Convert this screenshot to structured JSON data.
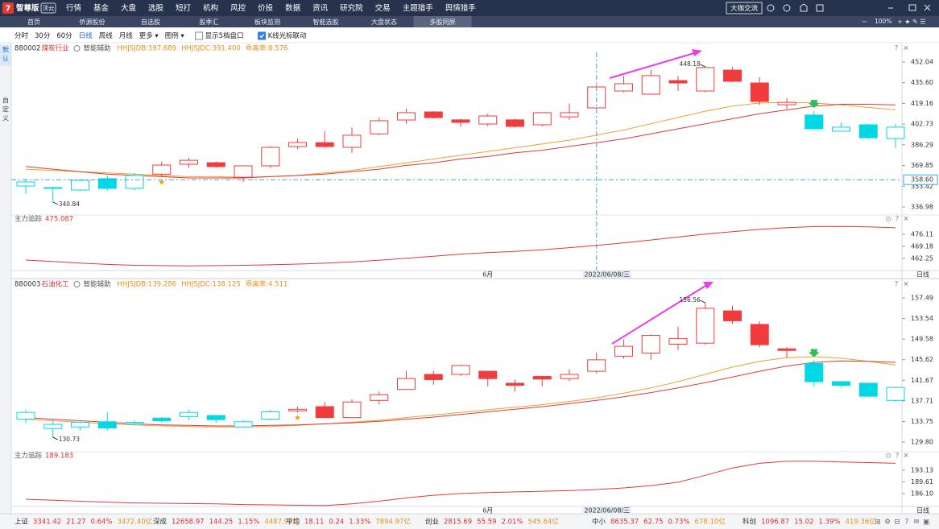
{
  "app": {
    "logo": "智尊版",
    "badge": "顶云",
    "menu": [
      "行情",
      "基金",
      "大盘",
      "选股",
      "短打",
      "机构",
      "风控",
      "价投",
      "数据",
      "资讯",
      "研究院",
      "交易",
      "主题猎手",
      "舆情猎手"
    ],
    "chat": "大咖交流",
    "zoom": "100%"
  },
  "tabs": {
    "items": [
      "首页",
      "侨源股份",
      "自选股",
      "股季汇",
      "板块监测",
      "智能选股",
      "大盘状态",
      "多股同屏"
    ],
    "active": 7
  },
  "toolbar": {
    "items": [
      "分时",
      "30分",
      "60分",
      "日线",
      "周线",
      "月线",
      "更多 ▾",
      "图例 ▾"
    ],
    "selected": 3,
    "checks": [
      {
        "label": "显示5档盘口",
        "checked": false
      },
      {
        "label": "K线光标联动",
        "checked": true
      }
    ]
  },
  "sidebar": [
    "默认",
    "自定义"
  ],
  "panels": [
    {
      "code": "880002",
      "name": "煤炭行业",
      "assist": "智能辅助",
      "bias": "乖离率:8.576",
      "ylim": [
        333.8,
        459.7
      ],
      "yticks": [
        {
          "value": 452.04,
          "label": "452.04"
        },
        {
          "value": 435.6,
          "label": "435.60"
        },
        {
          "value": 419.16,
          "label": "419.16"
        },
        {
          "value": 402.73,
          "label": "402.73"
        },
        {
          "value": 386.29,
          "label": "386.29"
        },
        {
          "value": 369.85,
          "label": "369.85"
        },
        {
          "value": 353.42,
          "label": "353.42"
        },
        {
          "value": 336.98,
          "label": "336.98"
        }
      ],
      "candles": {
        "open": [
          353.6,
          351.7,
          350.4,
          359.4,
          351.7,
          363,
          370.9,
          372.1,
          360.6,
          369.6,
          384.9,
          388,
          384.3,
          395,
          406,
          412.4,
          406.1,
          402.8,
          406.1,
          402.2,
          408.5,
          415.6,
          429,
          426.5,
          437.3,
          429,
          445.6,
          435.4,
          418.1,
          409.9,
          397.1,
          402.2,
          391.3
        ],
        "high": [
          359,
          353,
          359,
          362,
          364,
          373,
          376,
          373,
          370,
          385,
          391,
          397,
          400,
          408,
          415,
          413,
          407,
          411,
          407,
          412,
          419,
          434,
          441,
          446,
          441,
          448.18,
          448,
          440,
          423,
          413,
          404,
          403,
          403
        ],
        "low": [
          347.5,
          340.84,
          349.5,
          350,
          350,
          361,
          368,
          368,
          357,
          368,
          383,
          384,
          380,
          394,
          403,
          407,
          400.5,
          401,
          400,
          401,
          406,
          415,
          428,
          426,
          429,
          428,
          436,
          418,
          415,
          399,
          397,
          391,
          384
        ],
        "close": [
          356.8,
          352.4,
          358.1,
          351.7,
          362,
          370.2,
          374,
          369,
          369.6,
          384.3,
          388.1,
          384.9,
          393.9,
          405.4,
          411.8,
          407.9,
          404.1,
          409.2,
          400.9,
          411.8,
          411.8,
          432.2,
          434.8,
          441.2,
          435.4,
          447.6,
          436.7,
          420.7,
          420,
          399,
          400.3,
          391.9,
          400.3
        ],
        "colors": [
          "#00d8e6",
          "#00d8e6",
          "#00d8e6",
          "#00d8e6",
          "#00d8e6",
          "#f03c3c",
          "#f03c3c",
          "#f03c3c",
          "#f03c3c",
          "#f03c3c",
          "#f03c3c",
          "#f03c3c",
          "#f03c3c",
          "#f03c3c",
          "#f03c3c",
          "#f03c3c",
          "#f03c3c",
          "#f03c3c",
          "#f03c3c",
          "#f03c3c",
          "#f03c3c",
          "#f03c3c",
          "#f03c3c",
          "#f03c3c",
          "#f03c3c",
          "#f03c3c",
          "#f03c3c",
          "#f03c3c",
          "#f03c3c",
          "#00d8e6",
          "#00d8e6",
          "#00d8e6",
          "#00d8e6"
        ]
      },
      "high_label": "448.18",
      "low_label": "340.84",
      "ma": [
        {
          "label": "HHJSJDB:397.689",
          "color": "#f0a030",
          "values": [
            367,
            366,
            365,
            364,
            363,
            362,
            361,
            361,
            360.5,
            361,
            362,
            364,
            366,
            369,
            372,
            375,
            378,
            381,
            384,
            387,
            390,
            394,
            398,
            403,
            408,
            413,
            417,
            419.5,
            420,
            419.5,
            418,
            416,
            414
          ]
        },
        {
          "label": "HHJSJDC:391.400",
          "color": "#e03a3a",
          "values": [
            369,
            367,
            365,
            363,
            362,
            361,
            360,
            360,
            360,
            361,
            362,
            363,
            365,
            367,
            370,
            372,
            375,
            377,
            380,
            382,
            385,
            388,
            391,
            395,
            399,
            403,
            407,
            411,
            414,
            417,
            418.5,
            418.5,
            418
          ]
        }
      ],
      "signals": {
        "star": 5,
        "down": 29
      },
      "cursor": {
        "index": 21,
        "price": {
          "value": 358.6,
          "label": "358.60"
        }
      },
      "dates": [
        {
          "index": 17,
          "label": "6月"
        },
        {
          "index": 21,
          "label": "2022/06/08/三"
        }
      ],
      "period": "日线",
      "indicator": {
        "name": "主力追踪",
        "value": "475.087",
        "ylim": [
          455.3,
          483.0
        ],
        "yticks": [
          {
            "value": 476.11,
            "label": "476.11"
          },
          {
            "value": 469.18,
            "label": "469.18"
          },
          {
            "value": 462.25,
            "label": "462.25"
          }
        ],
        "values": [
          461.3,
          460.5,
          459.6,
          458.8,
          458.3,
          458.1,
          458,
          458.1,
          458.3,
          458.6,
          459,
          459.5,
          460.3,
          461.2,
          462.3,
          463.5,
          464.7,
          465.6,
          466.3,
          467.2,
          468.4,
          469.7,
          471.2,
          472.8,
          474.5,
          476.2,
          477.6,
          478.9,
          479.9,
          480.5,
          480.6,
          480.3,
          479.8
        ]
      }
    },
    {
      "code": "880003",
      "name": "石油化工",
      "assist": "智能辅助",
      "bias": "乖离率:4.511",
      "ylim": [
        128.1,
        158.73
      ],
      "yticks": [
        {
          "value": 157.49,
          "label": "157.49"
        },
        {
          "value": 153.54,
          "label": "153.54"
        },
        {
          "value": 149.58,
          "label": "149.58"
        },
        {
          "value": 145.62,
          "label": "145.62"
        },
        {
          "value": 141.67,
          "label": "141.67"
        },
        {
          "value": 137.71,
          "label": "137.71"
        },
        {
          "value": 133.75,
          "label": "133.75"
        },
        {
          "value": 129.8,
          "label": "129.80"
        }
      ],
      "candles": {
        "open": [
          134.2,
          132.4,
          132.7,
          133.7,
          133.3,
          134.4,
          134.7,
          134.9,
          132.7,
          134.2,
          135.8,
          136.6,
          134.5,
          137.8,
          139.9,
          142.8,
          142.8,
          143.4,
          141.1,
          142.4,
          142,
          143.4,
          146.3,
          146.9,
          148.6,
          148.8,
          155,
          152.4,
          147.7,
          144.9,
          141.4,
          141.1,
          137.8
        ],
        "high": [
          136,
          134,
          134,
          135.5,
          134,
          134.6,
          136,
          135,
          134,
          136,
          136.6,
          137.5,
          138,
          139.5,
          143.5,
          143.5,
          144.7,
          143.5,
          141.8,
          142.5,
          143.8,
          147,
          149.5,
          150.5,
          152,
          156.56,
          156,
          153,
          148,
          145.5,
          141.5,
          141.1,
          140.5
        ],
        "low": [
          133.5,
          130.73,
          132,
          132,
          133,
          133.5,
          134,
          133.5,
          132.5,
          134,
          135.5,
          134.5,
          134.5,
          137,
          139.8,
          140.8,
          142.5,
          140.5,
          139.5,
          140.5,
          141.5,
          143,
          145.8,
          145.6,
          147.5,
          148.5,
          152.5,
          148,
          146,
          140.5,
          140.2,
          138.5,
          137.5
        ],
        "close": [
          135.5,
          133.2,
          133.6,
          132.5,
          133.6,
          133.9,
          135.5,
          134.1,
          133.7,
          135.6,
          136.1,
          134.5,
          137.5,
          138.9,
          142,
          141.8,
          144.5,
          142,
          140.7,
          141.9,
          142.8,
          145.6,
          148.2,
          150.3,
          149.7,
          155.5,
          153.1,
          148.5,
          147.4,
          141.4,
          140.7,
          138.6,
          140.3
        ],
        "colors": [
          "#00d8e6",
          "#00d8e6",
          "#00d8e6",
          "#00d8e6",
          "#00d8e6",
          "#00d8e6",
          "#00d8e6",
          "#00d8e6",
          "#00d8e6",
          "#00d8e6",
          "#f03c3c",
          "#f03c3c",
          "#f03c3c",
          "#f03c3c",
          "#f03c3c",
          "#f03c3c",
          "#f03c3c",
          "#f03c3c",
          "#f03c3c",
          "#f03c3c",
          "#f03c3c",
          "#f03c3c",
          "#f03c3c",
          "#f03c3c",
          "#f03c3c",
          "#f03c3c",
          "#f03c3c",
          "#f03c3c",
          "#f03c3c",
          "#00d8e6",
          "#00d8e6",
          "#00d8e6",
          "#00d8e6"
        ]
      },
      "high_label": "156.56",
      "low_label": "130.73",
      "ma": [
        {
          "label": "HHJSJDB:139.286",
          "color": "#f0a030",
          "values": [
            134.2,
            133.9,
            133.6,
            133.3,
            133.1,
            132.9,
            132.8,
            132.7,
            132.7,
            132.8,
            133,
            133.3,
            133.6,
            134,
            134.5,
            135,
            135.5,
            136,
            136.5,
            137,
            137.6,
            138.3,
            139.2,
            140.2,
            141.4,
            142.8,
            144.2,
            145.3,
            146,
            146.2,
            145.9,
            145.3,
            144.6
          ]
        },
        {
          "label": "HHJSJDC:138.125",
          "color": "#e03a3a",
          "values": [
            134.5,
            134.2,
            133.9,
            133.6,
            133.3,
            133.1,
            133,
            132.9,
            132.9,
            133,
            133.1,
            133.3,
            133.5,
            133.8,
            134.2,
            134.6,
            135.1,
            135.6,
            136.1,
            136.6,
            137.2,
            137.8,
            138.5,
            139.3,
            140.2,
            141.2,
            142.3,
            143.4,
            144.4,
            145.1,
            145.4,
            145.3,
            145.1
          ]
        }
      ],
      "signals": {
        "star": 10,
        "down": 29
      },
      "dates": [
        {
          "index": 17,
          "label": "6月"
        },
        {
          "index": 21,
          "label": "2022/06/08/三"
        }
      ],
      "period": "日线",
      "indicator": {
        "name": "主力追踪",
        "value": "189.183",
        "ylim": [
          181.5,
          196.5
        ],
        "yticks": [
          {
            "value": 193.13,
            "label": "193.13"
          },
          {
            "value": 189.61,
            "label": "189.61"
          },
          {
            "value": 186.1,
            "label": "186.10"
          }
        ],
        "values": [
          184.4,
          184.1,
          183.8,
          183.5,
          183.3,
          183.2,
          183.1,
          183,
          182.8,
          182.7,
          182.6,
          182.5,
          183,
          183.8,
          184.8,
          185.6,
          186.1,
          186.4,
          186.6,
          186.8,
          187,
          187.3,
          187.8,
          188.5,
          189.5,
          191.6,
          193.8,
          195.2,
          195.8,
          195.8,
          195.6,
          195.4,
          195.2
        ]
      }
    }
  ],
  "status": [
    {
      "name": "上证",
      "price": "3341.42",
      "change": "21.27",
      "pct": "0.64%",
      "amount": "3472.40亿"
    },
    {
      "name": "深成",
      "price": "12658.97",
      "change": "144.25",
      "pct": "1.15%",
      "amount": "4487.92亿"
    },
    {
      "name": "平均",
      "price": "18.11",
      "change": "0.24",
      "pct": "1.33%",
      "amount": "7894.97亿"
    },
    {
      "name": "创业",
      "price": "2815.69",
      "change": "55.59",
      "pct": "2.01%",
      "amount": "545.64亿"
    },
    {
      "name": "中小",
      "price": "8635.37",
      "change": "62.75",
      "pct": "0.73%",
      "amount": "678.10亿"
    },
    {
      "name": "科创",
      "price": "1096.87",
      "change": "15.02",
      "pct": "1.39%",
      "amount": "419.36亿"
    }
  ]
}
